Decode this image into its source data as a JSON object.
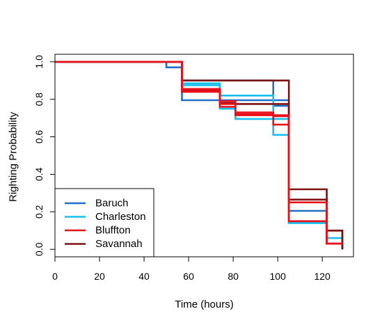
{
  "chart_data": {
    "type": "line",
    "subtype": "step (Kaplan-Meier style)",
    "title": "",
    "xlabel": "Time (hours)",
    "ylabel": "Righting Probability",
    "xlim": [
      0,
      134
    ],
    "ylim": [
      -0.04,
      1.04
    ],
    "xticks": [
      0,
      20,
      40,
      60,
      80,
      100,
      120
    ],
    "yticks": [
      0.0,
      0.2,
      0.4,
      0.6,
      0.8,
      1.0
    ],
    "xtick_labels": [
      "0",
      "20",
      "40",
      "60",
      "80",
      "100",
      "120"
    ],
    "ytick_labels": [
      "0.0",
      "0.2",
      "0.4",
      "0.6",
      "0.8",
      "1.0"
    ],
    "legend": {
      "placement": "bottom-left",
      "entries": [
        {
          "name": "Baruch",
          "color": "#1f6fc4"
        },
        {
          "name": "Charleston",
          "color": "#17bfef"
        },
        {
          "name": "Bluffton",
          "color": "#e8111a"
        },
        {
          "name": "Savannah",
          "color": "#7d1212"
        }
      ]
    },
    "series": [
      {
        "name": "Baruch",
        "color": "#1f6fc4",
        "steps": [
          [
            0,
            1.0
          ],
          [
            50,
            0.97
          ],
          [
            57,
            0.795
          ],
          [
            105,
            0.205
          ],
          [
            122,
            0.03
          ],
          [
            129,
            0.0
          ]
        ]
      },
      {
        "name": "Baruch",
        "color": "#1f6fc4",
        "steps": [
          [
            0,
            1.0
          ],
          [
            57,
            0.9
          ],
          [
            98,
            0.765
          ],
          [
            105,
            0.15
          ],
          [
            122,
            0.03
          ],
          [
            129,
            0.0
          ]
        ]
      },
      {
        "name": "Charleston",
        "color": "#17bfef",
        "steps": [
          [
            0,
            1.0
          ],
          [
            57,
            0.875
          ],
          [
            74,
            0.82
          ],
          [
            98,
            0.61
          ],
          [
            105,
            0.14
          ],
          [
            122,
            0.06
          ],
          [
            129,
            0.0
          ]
        ]
      },
      {
        "name": "Charleston",
        "color": "#17bfef",
        "steps": [
          [
            0,
            1.0
          ],
          [
            57,
            0.885
          ],
          [
            74,
            0.75
          ],
          [
            81,
            0.695
          ],
          [
            98,
            0.695
          ],
          [
            105,
            0.14
          ],
          [
            122,
            0.03
          ],
          [
            129,
            0.0
          ]
        ]
      },
      {
        "name": "Savannah",
        "color": "#7d1212",
        "steps": [
          [
            0,
            1.0
          ],
          [
            57,
            0.9
          ],
          [
            98,
            0.9
          ],
          [
            105,
            0.32
          ],
          [
            122,
            0.1
          ],
          [
            129,
            0.0
          ]
        ]
      },
      {
        "name": "Savannah",
        "color": "#7d1212",
        "steps": [
          [
            0,
            1.0
          ],
          [
            57,
            0.85
          ],
          [
            74,
            0.78
          ],
          [
            81,
            0.775
          ],
          [
            98,
            0.775
          ],
          [
            105,
            0.265
          ],
          [
            122,
            0.1
          ],
          [
            129,
            0.0
          ]
        ]
      },
      {
        "name": "Bluffton",
        "color": "#e8111a",
        "steps": [
          [
            0,
            1.0
          ],
          [
            57,
            0.855
          ],
          [
            74,
            0.79
          ],
          [
            81,
            0.73
          ],
          [
            98,
            0.715
          ],
          [
            105,
            0.25
          ],
          [
            122,
            0.03
          ],
          [
            129,
            0.03
          ]
        ]
      },
      {
        "name": "Bluffton",
        "color": "#e8111a",
        "steps": [
          [
            0,
            1.0
          ],
          [
            57,
            0.84
          ],
          [
            74,
            0.76
          ],
          [
            81,
            0.715
          ],
          [
            98,
            0.665
          ],
          [
            105,
            0.15
          ],
          [
            122,
            0.03
          ],
          [
            129,
            0.03
          ]
        ]
      },
      {
        "name": "Bluffton",
        "color": "#e8111a",
        "steps": [
          [
            0,
            1.0
          ],
          [
            57,
            0.845
          ],
          [
            74,
            0.775
          ],
          [
            81,
            0.72
          ],
          [
            98,
            0.71
          ],
          [
            105,
            0.15
          ],
          [
            122,
            0.03
          ],
          [
            129,
            0.03
          ]
        ]
      }
    ]
  }
}
